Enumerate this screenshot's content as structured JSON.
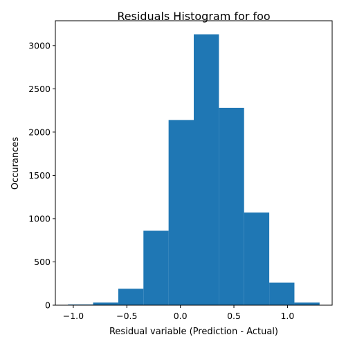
{
  "chart_data": {
    "type": "bar",
    "title": "Residuals Histogram for foo",
    "xlabel": "Residual variable (Prediction - Actual)",
    "ylabel": "Occurances",
    "bar_color": "#1f77b4",
    "bins": [
      {
        "x0": -1.05,
        "x1": -0.815,
        "count": 8
      },
      {
        "x0": -0.815,
        "x1": -0.58,
        "count": 30
      },
      {
        "x0": -0.58,
        "x1": -0.345,
        "count": 190
      },
      {
        "x0": -0.345,
        "x1": -0.11,
        "count": 860
      },
      {
        "x0": -0.11,
        "x1": 0.125,
        "count": 2140
      },
      {
        "x0": 0.125,
        "x1": 0.36,
        "count": 3130
      },
      {
        "x0": 0.36,
        "x1": 0.595,
        "count": 2280
      },
      {
        "x0": 0.595,
        "x1": 0.83,
        "count": 1070
      },
      {
        "x0": 0.83,
        "x1": 1.065,
        "count": 260
      },
      {
        "x0": 1.065,
        "x1": 1.3,
        "count": 30
      }
    ],
    "xlim": [
      -1.1675,
      1.4175
    ],
    "ylim": [
      0,
      3286.5
    ],
    "xticks": [
      {
        "value": -1.0,
        "label": "−1.0"
      },
      {
        "value": -0.5,
        "label": "−0.5"
      },
      {
        "value": 0.0,
        "label": "0.0"
      },
      {
        "value": 0.5,
        "label": "0.5"
      },
      {
        "value": 1.0,
        "label": "1.0"
      }
    ],
    "yticks": [
      {
        "value": 0,
        "label": "0"
      },
      {
        "value": 500,
        "label": "500"
      },
      {
        "value": 1000,
        "label": "1000"
      },
      {
        "value": 1500,
        "label": "1500"
      },
      {
        "value": 2000,
        "label": "2000"
      },
      {
        "value": 2500,
        "label": "2500"
      },
      {
        "value": 3000,
        "label": "3000"
      }
    ],
    "grid": false,
    "legend": "none"
  }
}
